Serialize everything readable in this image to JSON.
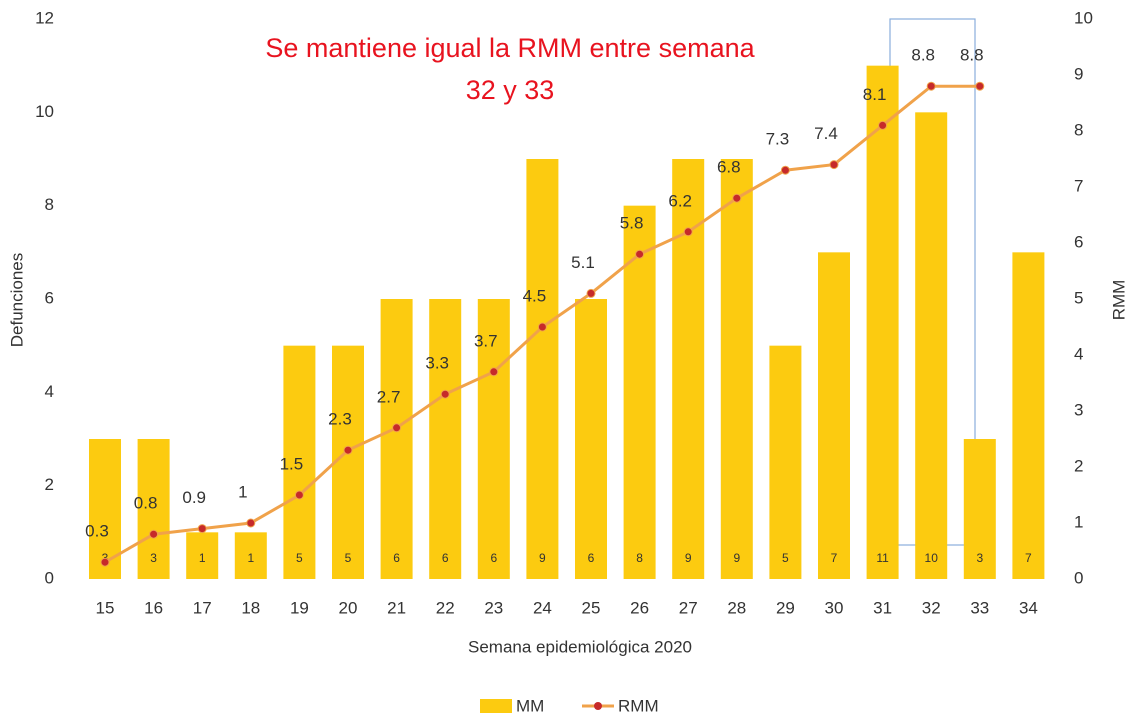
{
  "chart_data": {
    "type": "bar-line",
    "annotation": [
      "Se mantiene igual la RMM entre semana",
      "32 y 33"
    ],
    "x_label": "Semana epidemiológica 2020",
    "y_label": "Defunciones",
    "y2_label": "RMM",
    "categories": [
      "15",
      "16",
      "17",
      "18",
      "19",
      "20",
      "21",
      "22",
      "23",
      "24",
      "25",
      "26",
      "27",
      "28",
      "29",
      "30",
      "31",
      "32",
      "33",
      "34"
    ],
    "series": [
      {
        "name": "MM",
        "type": "bar",
        "color": "#fccb10",
        "values": [
          3,
          3,
          1,
          1,
          5,
          5,
          6,
          6,
          6,
          9,
          6,
          8,
          9,
          9,
          5,
          7,
          11,
          10,
          3,
          7
        ]
      },
      {
        "name": "RMM",
        "type": "line",
        "axis": "y2",
        "color": "#f0a24a",
        "marker_color": "#c62a2a",
        "values": [
          0.3,
          0.8,
          0.9,
          1,
          1.5,
          2.3,
          2.7,
          3.3,
          3.7,
          4.5,
          5.1,
          5.8,
          6.2,
          6.8,
          7.3,
          7.4,
          8.1,
          8.8,
          8.8,
          null
        ]
      }
    ],
    "ylim": [
      0,
      12
    ],
    "yticks": [
      0,
      2,
      4,
      6,
      8,
      10,
      12
    ],
    "y2lim": [
      0,
      10
    ],
    "y2ticks": [
      0,
      1,
      2,
      3,
      4,
      5,
      6,
      7,
      8,
      9,
      10
    ],
    "legend": "bottom"
  }
}
